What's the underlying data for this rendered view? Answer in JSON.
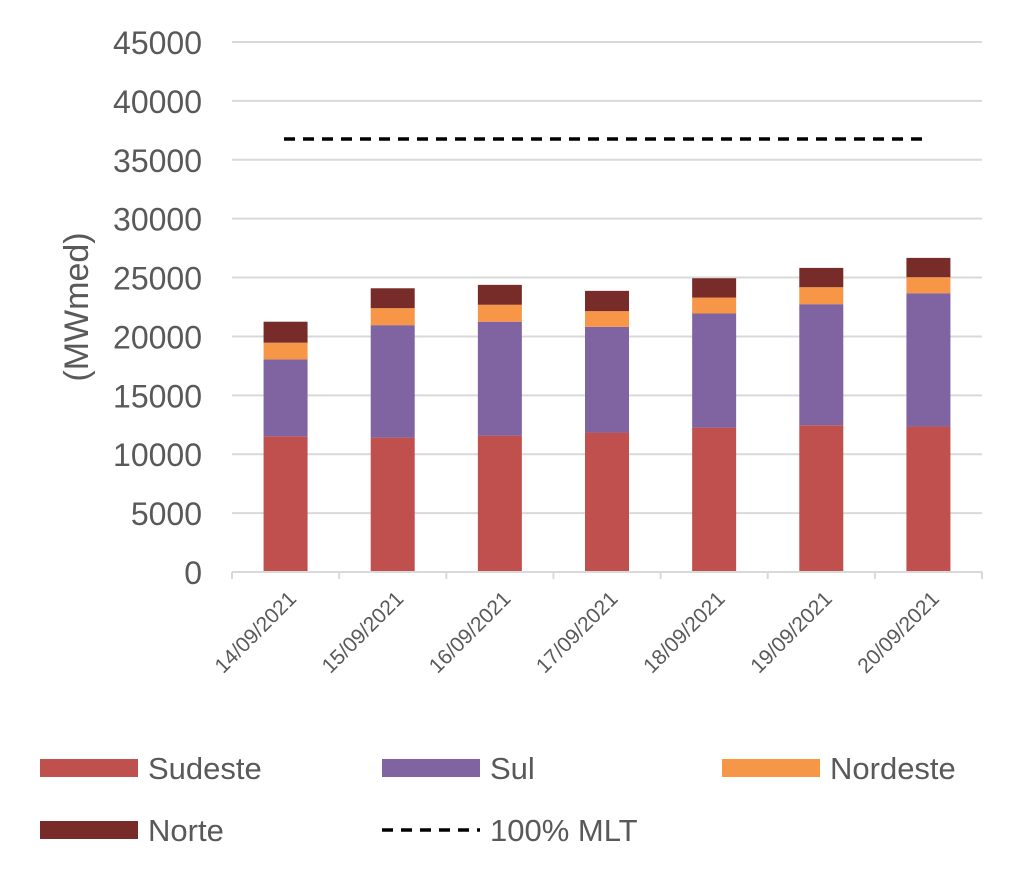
{
  "chart_data": {
    "type": "bar",
    "stacked": true,
    "title": "",
    "xlabel": "",
    "ylabel": "(MWmed)",
    "ylim": [
      0,
      45000
    ],
    "yticks": [
      0,
      5000,
      10000,
      15000,
      20000,
      25000,
      30000,
      35000,
      40000,
      45000
    ],
    "grid": true,
    "legend_position": "bottom",
    "categories": [
      "14/09/2021",
      "15/09/2021",
      "16/09/2021",
      "17/09/2021",
      "18/09/2021",
      "19/09/2021",
      "20/09/2021"
    ],
    "series": [
      {
        "name": "Sudeste",
        "color": "#C0504D",
        "values": [
          11520,
          11410,
          11580,
          11840,
          12260,
          12460,
          12350
        ]
      },
      {
        "name": "Sul",
        "color": "#8064A2",
        "values": [
          6530,
          9550,
          9670,
          8980,
          9690,
          10280,
          11320
        ]
      },
      {
        "name": "Nordeste",
        "color": "#F79646",
        "values": [
          1420,
          1440,
          1440,
          1330,
          1350,
          1440,
          1360
        ]
      },
      {
        "name": "Norte",
        "color": "#772C2A",
        "values": [
          1780,
          1690,
          1690,
          1720,
          1640,
          1640,
          1640
        ]
      }
    ],
    "reference_line": {
      "name": "100% MLT",
      "value": 36760,
      "style": "dashed",
      "color": "#000000"
    }
  }
}
